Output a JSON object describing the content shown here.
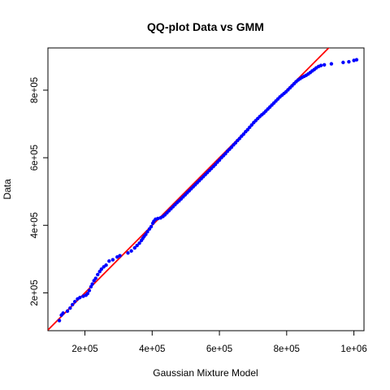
{
  "chart_data": {
    "type": "scatter",
    "title": "QQ-plot Data vs GMM",
    "xlabel": "Gaussian Mixture Model",
    "ylabel": "Data",
    "xlim": [
      90000,
      1030000
    ],
    "ylim": [
      88000,
      925000
    ],
    "x_ticks": [
      {
        "value": 200000,
        "label": "2e+05"
      },
      {
        "value": 400000,
        "label": "4e+05"
      },
      {
        "value": 600000,
        "label": "6e+05"
      },
      {
        "value": 800000,
        "label": "8e+05"
      },
      {
        "value": 1000000,
        "label": "1e+06"
      }
    ],
    "y_ticks": [
      {
        "value": 200000,
        "label": "2e+05"
      },
      {
        "value": 400000,
        "label": "4e+05"
      },
      {
        "value": 600000,
        "label": "6e+05"
      },
      {
        "value": 800000,
        "label": "8e+05"
      }
    ],
    "reference_line": {
      "slope": 1,
      "intercept": 0,
      "color": "#ff0000"
    },
    "point_color": "#0000ff",
    "grid": false,
    "legend": "none",
    "points": [
      [
        124000,
        118000
      ],
      [
        130000,
        134000
      ],
      [
        135000,
        140000
      ],
      [
        148000,
        146000
      ],
      [
        156000,
        155000
      ],
      [
        163000,
        165000
      ],
      [
        170000,
        174000
      ],
      [
        178000,
        182000
      ],
      [
        185000,
        186000
      ],
      [
        195000,
        190000
      ],
      [
        203000,
        193000
      ],
      [
        208000,
        198000
      ],
      [
        213000,
        207000
      ],
      [
        218000,
        218000
      ],
      [
        222000,
        226000
      ],
      [
        227000,
        236000
      ],
      [
        232000,
        243000
      ],
      [
        238000,
        254000
      ],
      [
        244000,
        263000
      ],
      [
        249000,
        270000
      ],
      [
        256000,
        277000
      ],
      [
        263000,
        282000
      ],
      [
        272000,
        294000
      ],
      [
        283000,
        298000
      ],
      [
        296000,
        306000
      ],
      [
        304000,
        310000
      ],
      [
        328000,
        318000
      ],
      [
        338000,
        324000
      ],
      [
        348000,
        333000
      ],
      [
        355000,
        340000
      ],
      [
        362000,
        347000
      ],
      [
        368000,
        355000
      ],
      [
        372000,
        361000
      ],
      [
        376000,
        367000
      ],
      [
        381000,
        373000
      ],
      [
        386000,
        381000
      ],
      [
        392000,
        389000
      ],
      [
        397000,
        396000
      ],
      [
        402000,
        406000
      ],
      [
        405000,
        412000
      ],
      [
        410000,
        418000
      ],
      [
        417000,
        420000
      ],
      [
        425000,
        422000
      ],
      [
        432000,
        426000
      ],
      [
        438000,
        431000
      ],
      [
        444000,
        437000
      ],
      [
        450000,
        443000
      ],
      [
        456000,
        449000
      ],
      [
        462000,
        455000
      ],
      [
        468000,
        461000
      ],
      [
        474000,
        467000
      ],
      [
        480000,
        472000
      ],
      [
        486000,
        478000
      ],
      [
        492000,
        484000
      ],
      [
        498000,
        490000
      ],
      [
        504000,
        496000
      ],
      [
        510000,
        502000
      ],
      [
        516000,
        508000
      ],
      [
        522000,
        514000
      ],
      [
        528000,
        520000
      ],
      [
        534000,
        526000
      ],
      [
        540000,
        532000
      ],
      [
        546000,
        538000
      ],
      [
        552000,
        544000
      ],
      [
        558000,
        550000
      ],
      [
        564000,
        556000
      ],
      [
        570000,
        562000
      ],
      [
        576000,
        568000
      ],
      [
        582000,
        574000
      ],
      [
        588000,
        580000
      ],
      [
        594000,
        587000
      ],
      [
        600000,
        593000
      ],
      [
        606000,
        600000
      ],
      [
        612000,
        606000
      ],
      [
        618000,
        612000
      ],
      [
        624000,
        619000
      ],
      [
        630000,
        625000
      ],
      [
        636000,
        631000
      ],
      [
        642000,
        638000
      ],
      [
        648000,
        644000
      ],
      [
        654000,
        651000
      ],
      [
        660000,
        657000
      ],
      [
        666000,
        664000
      ],
      [
        672000,
        670000
      ],
      [
        678000,
        677000
      ],
      [
        684000,
        683000
      ],
      [
        690000,
        690000
      ],
      [
        696000,
        697000
      ],
      [
        702000,
        704000
      ],
      [
        708000,
        710000
      ],
      [
        714000,
        716000
      ],
      [
        720000,
        722000
      ],
      [
        726000,
        727000
      ],
      [
        732000,
        732000
      ],
      [
        738000,
        738000
      ],
      [
        744000,
        744000
      ],
      [
        750000,
        750000
      ],
      [
        756000,
        756000
      ],
      [
        762000,
        762000
      ],
      [
        768000,
        768000
      ],
      [
        774000,
        774000
      ],
      [
        780000,
        780000
      ],
      [
        786000,
        785000
      ],
      [
        792000,
        790000
      ],
      [
        798000,
        795000
      ],
      [
        804000,
        801000
      ],
      [
        810000,
        807000
      ],
      [
        816000,
        813000
      ],
      [
        822000,
        819000
      ],
      [
        828000,
        825000
      ],
      [
        834000,
        830000
      ],
      [
        840000,
        834000
      ],
      [
        846000,
        838000
      ],
      [
        852000,
        841000
      ],
      [
        858000,
        844000
      ],
      [
        864000,
        848000
      ],
      [
        870000,
        852000
      ],
      [
        876000,
        857000
      ],
      [
        882000,
        861000
      ],
      [
        888000,
        866000
      ],
      [
        895000,
        870000
      ],
      [
        902000,
        873000
      ],
      [
        912000,
        875000
      ],
      [
        933000,
        878000
      ],
      [
        968000,
        882000
      ],
      [
        985000,
        884000
      ],
      [
        1000000,
        888000
      ],
      [
        1008000,
        890000
      ]
    ]
  }
}
